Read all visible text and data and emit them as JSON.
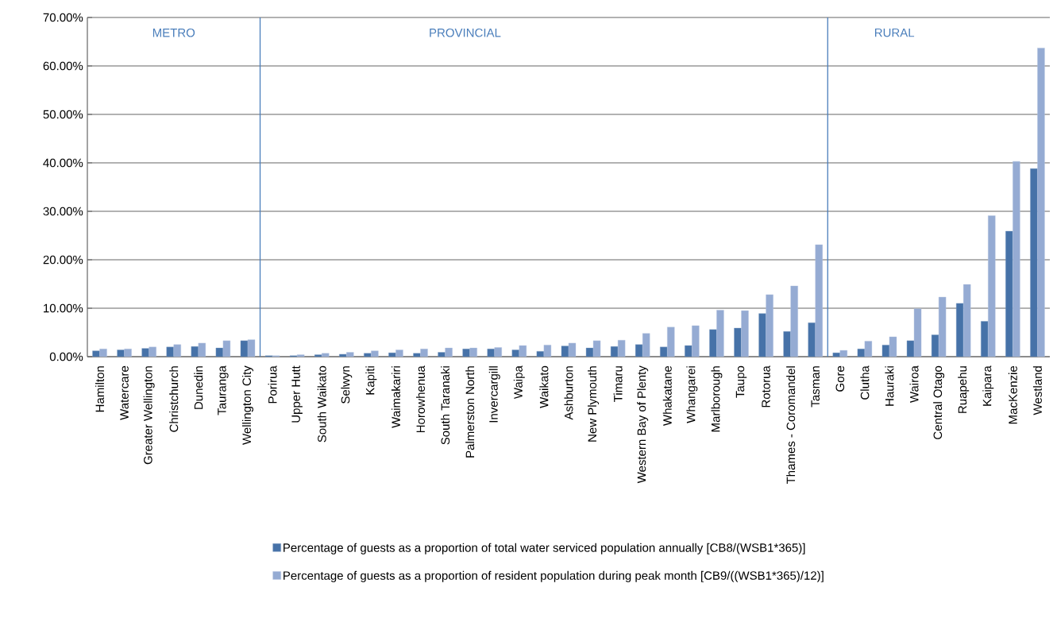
{
  "chart_data": {
    "type": "bar",
    "categories": [
      "Hamilton",
      "Watercare",
      "Greater Wellington",
      "Christchurch",
      "Dunedin",
      "Tauranga",
      "Wellington City",
      "Porirua",
      "Upper Hutt",
      "South Waikato",
      "Selwyn",
      "Kapiti",
      "Waimakariri",
      "Horowhenua",
      "South Taranaki",
      "Palmerston North",
      "Invercargill",
      "Waipa",
      "Waikato",
      "Ashburton",
      "New Plymouth",
      "Timaru",
      "Western Bay of Plenty",
      "Whakatane",
      "Whangarei",
      "Marlborough",
      "Taupo",
      "Rotorua",
      "Thames - Coromandel",
      "Tasman",
      "Gore",
      "Clutha",
      "Hauraki",
      "Wairoa",
      "Central Otago",
      "Ruapehu",
      "Kaipara",
      "MacKenzie",
      "Westland"
    ],
    "series": [
      {
        "name": "Percentage of guests as a proportion of total water serviced population annually [CB8/(WSB1*365)]",
        "color": "#4672a8",
        "values": [
          1.2,
          1.4,
          1.7,
          2.0,
          2.1,
          1.8,
          3.3,
          0.2,
          0.2,
          0.4,
          0.5,
          0.7,
          0.8,
          0.7,
          0.9,
          1.6,
          1.6,
          1.4,
          1.1,
          2.2,
          1.8,
          2.1,
          2.5,
          2.0,
          2.3,
          5.6,
          5.9,
          8.9,
          5.2,
          7.0,
          0.8,
          1.6,
          2.4,
          3.3,
          4.5,
          11.0,
          7.3,
          25.9,
          38.8
        ]
      },
      {
        "name": "Percentage of guests as a proportion of resident population during peak month [CB9/((WSB1*365)/12)]",
        "color": "#95abd3",
        "values": [
          1.6,
          1.6,
          2.0,
          2.5,
          2.8,
          3.3,
          3.5,
          0.2,
          0.4,
          0.7,
          0.9,
          1.2,
          1.4,
          1.6,
          1.8,
          1.8,
          1.9,
          2.3,
          2.4,
          2.8,
          3.3,
          3.4,
          4.8,
          6.1,
          6.4,
          9.6,
          9.5,
          12.8,
          14.6,
          23.1,
          1.3,
          3.2,
          4.1,
          9.9,
          12.3,
          14.9,
          29.1,
          40.3,
          63.7
        ]
      }
    ],
    "ylim": [
      0,
      70
    ],
    "yticks": [
      {
        "value": 0,
        "label": "0.00%"
      },
      {
        "value": 10,
        "label": "10.00%"
      },
      {
        "value": 20,
        "label": "20.00%"
      },
      {
        "value": 30,
        "label": "30.00%"
      },
      {
        "value": 40,
        "label": "40.00%"
      },
      {
        "value": 50,
        "label": "50.00%"
      },
      {
        "value": 60,
        "label": "60.00%"
      },
      {
        "value": 70,
        "label": "70.00%"
      }
    ],
    "grid": "y",
    "legend": "bottom",
    "annotations": [
      "METRO",
      "PROVINCIAL",
      "RURAL"
    ]
  }
}
